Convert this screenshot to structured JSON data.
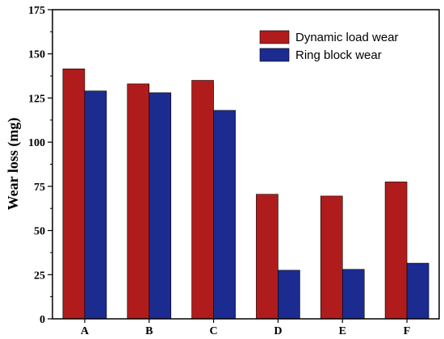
{
  "chart_data": {
    "type": "bar",
    "title": "",
    "xlabel": "",
    "ylabel": "Wear loss (mg)",
    "categories": [
      "A",
      "B",
      "C",
      "D",
      "E",
      "F"
    ],
    "series": [
      {
        "name": "Dynamic load wear",
        "values": [
          141.5,
          133,
          135,
          70.5,
          69.5,
          77.5
        ]
      },
      {
        "name": "Ring block wear",
        "values": [
          129,
          128,
          118,
          27.5,
          28,
          31.5
        ]
      }
    ],
    "ylim": [
      0,
      175
    ],
    "yticks": [
      0,
      25,
      50,
      75,
      100,
      125,
      150,
      175
    ],
    "legend_position": "top-right",
    "grid": false,
    "colors": {
      "Dynamic load wear": "#b01c1c",
      "Ring block wear": "#1c2b8f"
    }
  }
}
